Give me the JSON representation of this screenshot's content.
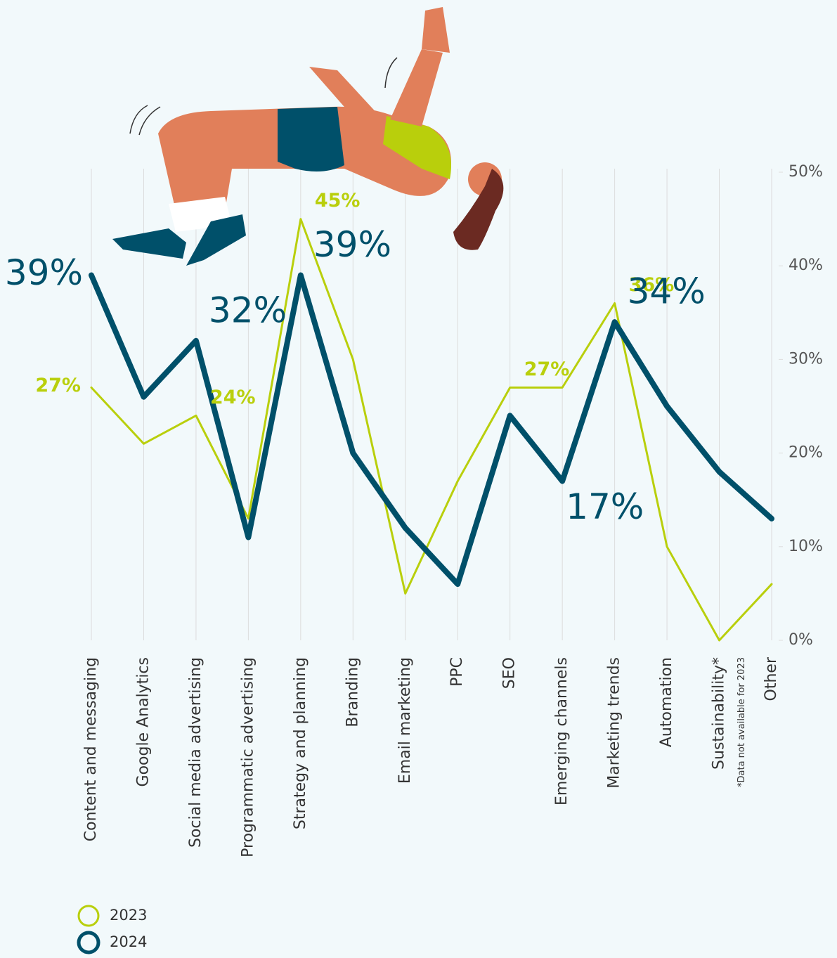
{
  "chart_data": {
    "type": "line",
    "categories": [
      "Content and messaging",
      "Google Analytics",
      "Social media advertising",
      "Programmatic advertising",
      "Strategy and planning",
      "Branding",
      "Email marketing",
      "PPC",
      "SEO",
      "Emerging channels",
      "Marketing trends",
      "Automation",
      "Sustainability*",
      "Other"
    ],
    "footnote": "*Data not available for 2023",
    "series": [
      {
        "name": "2023",
        "color": "#b9cf0c",
        "values": [
          27,
          21,
          24,
          13,
          45,
          30,
          5,
          17,
          27,
          27,
          36,
          10,
          0,
          6
        ],
        "value_labels": [
          "27%",
          null,
          "24%",
          null,
          "45%",
          null,
          null,
          null,
          "27%",
          null,
          "36%",
          null,
          null,
          null
        ]
      },
      {
        "name": "2024",
        "color": "#00506a",
        "values": [
          39,
          26,
          32,
          11,
          39,
          20,
          12,
          6,
          24,
          17,
          34,
          25,
          18,
          13
        ],
        "value_labels": [
          "39%",
          null,
          "32%",
          null,
          "39%",
          null,
          null,
          null,
          null,
          "17%",
          "34%",
          null,
          null,
          null
        ]
      }
    ],
    "ylim": [
      0,
      50
    ],
    "yticks": [
      {
        "value": 0,
        "label": "0%"
      },
      {
        "value": 10,
        "label": "10%"
      },
      {
        "value": 20,
        "label": "20%"
      },
      {
        "value": 30,
        "label": "30%"
      },
      {
        "value": 40,
        "label": "40%"
      },
      {
        "value": 50,
        "label": "50%"
      }
    ],
    "grid": true
  }
}
